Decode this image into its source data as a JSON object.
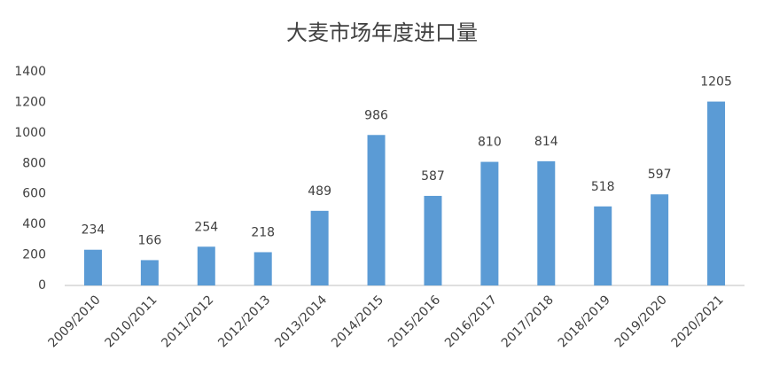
{
  "chart_data": {
    "type": "bar",
    "title": "大麦市场年度进口量",
    "categories": [
      "2009/2010",
      "2010/2011",
      "2011/2012",
      "2012/2013",
      "2013/2014",
      "2014/2015",
      "2015/2016",
      "2016/2017",
      "2017/2018",
      "2018/2019",
      "2019/2020",
      "2020/2021"
    ],
    "values": [
      234,
      166,
      254,
      218,
      489,
      986,
      587,
      810,
      814,
      518,
      597,
      1205
    ],
    "color": "#5b9bd5",
    "ylim": [
      0,
      1400
    ],
    "yticks": [
      0,
      200,
      400,
      600,
      800,
      1000,
      1200,
      1400
    ],
    "grid": false
  }
}
